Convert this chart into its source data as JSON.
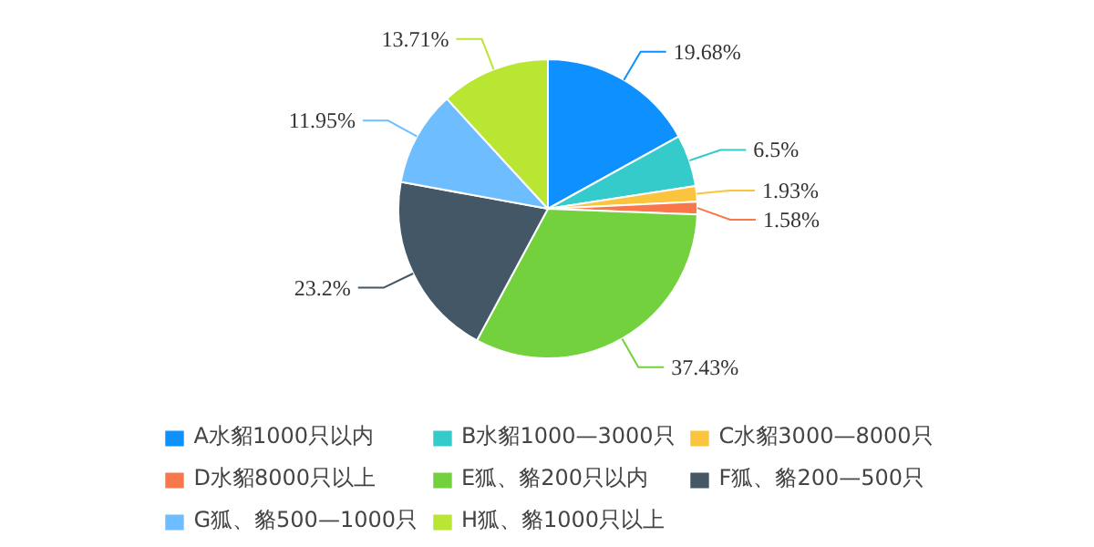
{
  "chart_data": {
    "type": "pie",
    "categories": [
      "A水貂1000只以内",
      "B水貂1000—3000只",
      "C水貂3000—8000只",
      "D水貂8000只以上",
      "E狐、貉200只以内",
      "F狐、貉200—500只",
      "G狐、貉500—1000只",
      "H狐、貉1000只以上"
    ],
    "values": [
      19.68,
      6.5,
      1.93,
      1.58,
      37.43,
      23.2,
      11.95,
      13.71
    ],
    "value_labels": [
      "19.68%",
      "6.5%",
      "1.93%",
      "1.58%",
      "37.43%",
      "23.2%",
      "11.95%",
      "13.71%"
    ],
    "colors": [
      "#0e90fe",
      "#36cbcb",
      "#fbc43e",
      "#f9784b",
      "#73d13d",
      "#435766",
      "#6ebeff",
      "#b9e533"
    ],
    "legend": "bottom"
  }
}
